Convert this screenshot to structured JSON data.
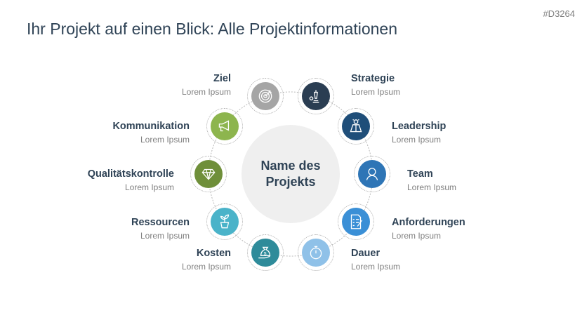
{
  "tag": "#D3264",
  "title": "Ihr Projekt auf einen Blick: Alle Projektinformationen",
  "center": {
    "line1": "Name des",
    "line2": "Projekts"
  },
  "items": [
    {
      "title": "Ziel",
      "subtitle": "Lorem Ipsum",
      "color": "#a5a5a5",
      "icon": "target-icon"
    },
    {
      "title": "Strategie",
      "subtitle": "Lorem Ipsum",
      "color": "#2a3d52",
      "icon": "chess-icon"
    },
    {
      "title": "Leadership",
      "subtitle": "Lorem Ipsum",
      "color": "#1f4e79",
      "icon": "hero-icon"
    },
    {
      "title": "Team",
      "subtitle": "Lorem Ipsum",
      "color": "#2e75b6",
      "icon": "person-icon"
    },
    {
      "title": "Anforderungen",
      "subtitle": "Lorem Ipsum",
      "color": "#3a8fd6",
      "icon": "checklist-icon"
    },
    {
      "title": "Dauer",
      "subtitle": "Lorem Ipsum",
      "color": "#8fc1e8",
      "icon": "stopwatch-icon"
    },
    {
      "title": "Kosten",
      "subtitle": "Lorem Ipsum",
      "color": "#2e8b9a",
      "icon": "money-bag-icon"
    },
    {
      "title": "Ressourcen",
      "subtitle": "Lorem Ipsum",
      "color": "#4ab3c9",
      "icon": "plant-icon"
    },
    {
      "title": "Qualitätskontrolle",
      "subtitle": "Lorem Ipsum",
      "color": "#6f8f3a",
      "icon": "diamond-icon"
    },
    {
      "title": "Kommunikation",
      "subtitle": "Lorem Ipsum",
      "color": "#8db54e",
      "icon": "megaphone-icon"
    }
  ]
}
